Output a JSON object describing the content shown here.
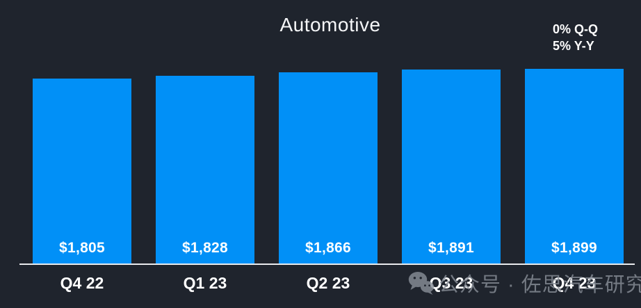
{
  "title": "Automotive",
  "annotation": {
    "qoq": "0% Q-Q",
    "yoy": "5% Y-Y"
  },
  "watermark": {
    "icon": "wechat-icon",
    "text": "公众号 · 佐思汽车研究"
  },
  "colors": {
    "background": "#1f242d",
    "bar": "#0190f7",
    "text": "#ffffff",
    "axis": "#e9ebee",
    "watermark": "#878d97"
  },
  "chart_data": {
    "type": "bar",
    "title": "Automotive",
    "categories": [
      "Q4 22",
      "Q1 23",
      "Q2 23",
      "Q3 23",
      "Q4 23"
    ],
    "values": [
      1805,
      1828,
      1866,
      1891,
      1899
    ],
    "value_labels": [
      "$1,805",
      "$1,828",
      "$1,866",
      "$1,891",
      "$1,899"
    ],
    "ylim": [
      0,
      1899
    ],
    "grid": false,
    "legend": false,
    "bar_color": "#0190f7",
    "value_label_position": "inside-bottom",
    "annotations": [
      "0% Q-Q",
      "5% Y-Y"
    ],
    "annotation_position": "top-right"
  }
}
